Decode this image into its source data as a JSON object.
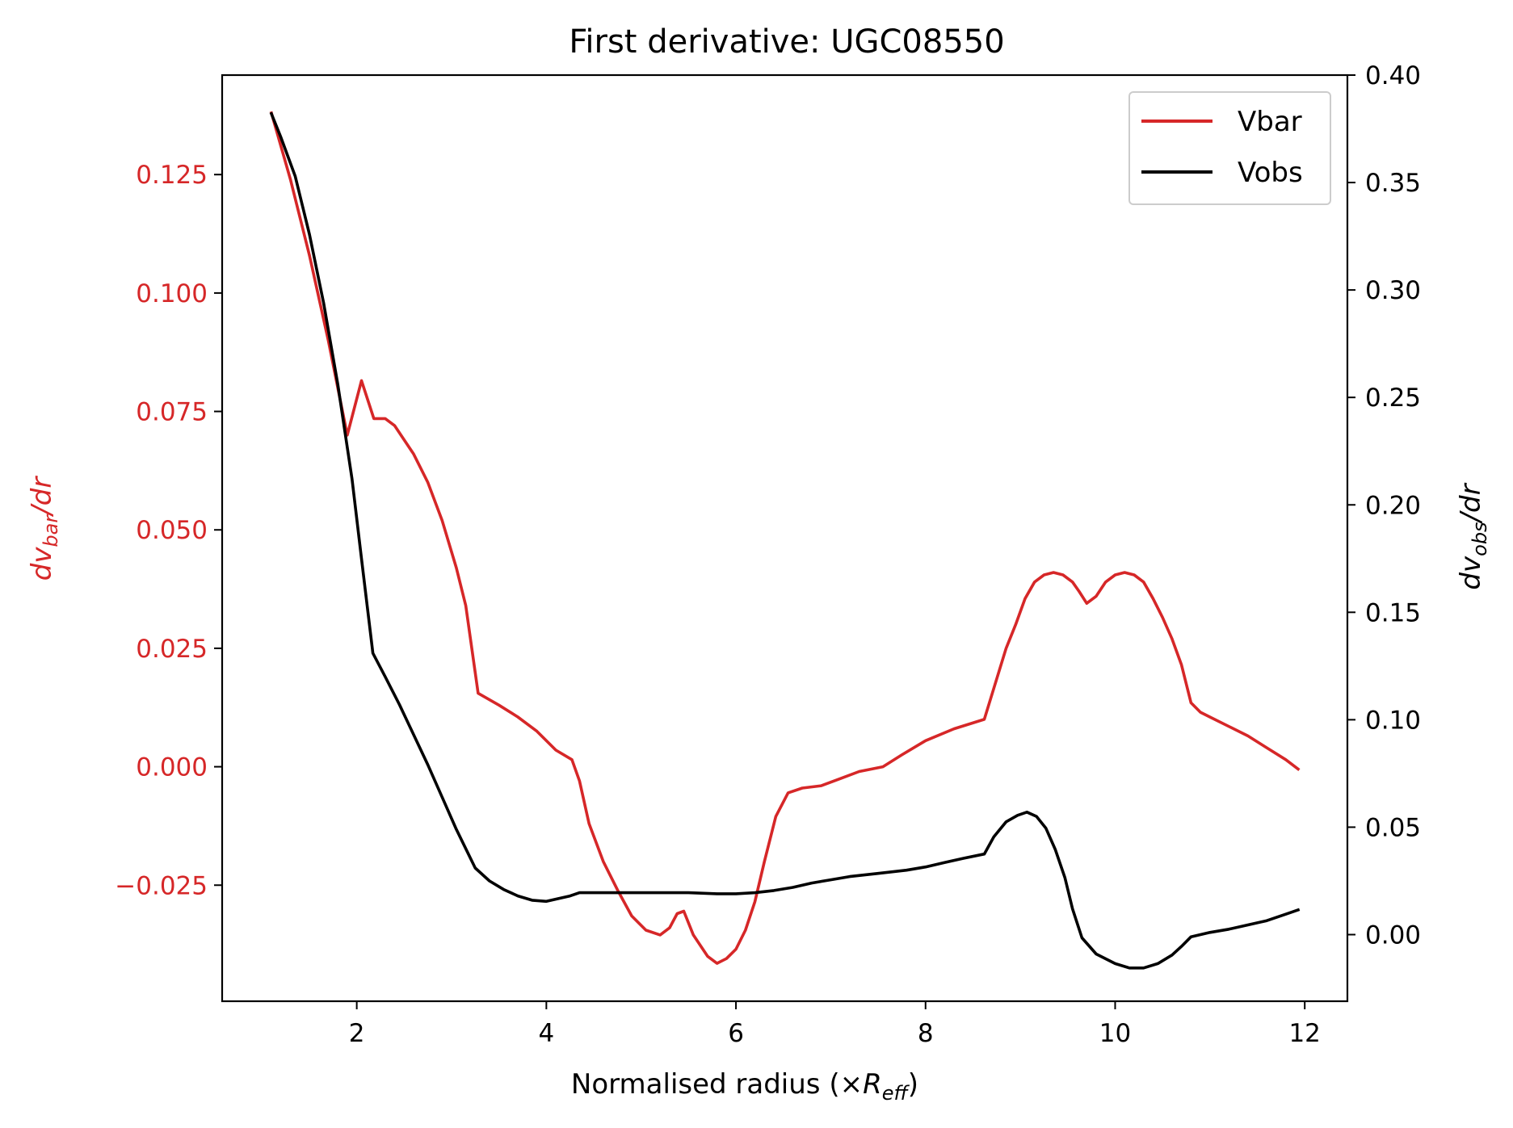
{
  "chart_data": {
    "type": "line",
    "title": "First derivative: UGC08550",
    "xlabel": {
      "main": "Normalised radius (×",
      "var": "R",
      "sub": "eff",
      "tail": ")"
    },
    "ylabel_left": {
      "var": "dv",
      "sub": "bar",
      "tail": "/dr"
    },
    "ylabel_right": {
      "var": "dv",
      "sub": "obs",
      "tail": "/dr"
    },
    "xlim": [
      0.58,
      12.45
    ],
    "ylim_left": [
      -0.0495,
      0.146
    ],
    "ylim_right": [
      -0.031,
      0.4
    ],
    "x_ticks": [
      2,
      4,
      6,
      8,
      10,
      12
    ],
    "x_tick_labels": [
      "2",
      "4",
      "6",
      "8",
      "10",
      "12"
    ],
    "left_ticks": [
      0.125,
      0.1,
      0.075,
      0.05,
      0.025,
      0.0,
      -0.025
    ],
    "left_tick_labels": [
      "0.125",
      "0.100",
      "0.075",
      "0.050",
      "0.025",
      "0.000",
      "−0.025"
    ],
    "right_ticks": [
      0.4,
      0.35,
      0.3,
      0.25,
      0.2,
      0.15,
      0.1,
      0.05,
      0.0
    ],
    "right_tick_labels": [
      "0.40",
      "0.35",
      "0.30",
      "0.25",
      "0.20",
      "0.15",
      "0.10",
      "0.05",
      "0.00"
    ],
    "grid": false,
    "legend_position": "top-right",
    "colors": {
      "vbar": "#d62728",
      "vobs": "#000000",
      "left_axis": "#d62728",
      "right_axis": "#000000"
    },
    "series": [
      {
        "name": "Vbar",
        "axis": "left",
        "x": [
          1.1,
          1.3,
          1.5,
          1.7,
          1.9,
          2.05,
          2.18,
          2.3,
          2.4,
          2.5,
          2.6,
          2.75,
          2.9,
          3.05,
          3.15,
          3.28,
          3.5,
          3.7,
          3.9,
          4.1,
          4.27,
          4.35,
          4.45,
          4.6,
          4.75,
          4.9,
          5.05,
          5.2,
          5.3,
          5.38,
          5.45,
          5.55,
          5.7,
          5.8,
          5.9,
          6.0,
          6.1,
          6.2,
          6.3,
          6.42,
          6.55,
          6.7,
          6.9,
          7.1,
          7.3,
          7.55,
          7.75,
          8.0,
          8.3,
          8.62,
          8.75,
          8.85,
          8.95,
          9.05,
          9.15,
          9.25,
          9.35,
          9.45,
          9.55,
          9.62,
          9.7,
          9.8,
          9.9,
          10.0,
          10.1,
          10.2,
          10.3,
          10.4,
          10.5,
          10.6,
          10.7,
          10.8,
          10.9,
          11.0,
          11.2,
          11.4,
          11.6,
          11.8,
          11.93
        ],
        "y": [
          0.138,
          0.124,
          0.108,
          0.09,
          0.07,
          0.0815,
          0.0735,
          0.0735,
          0.072,
          0.069,
          0.066,
          0.06,
          0.052,
          0.042,
          0.034,
          0.0155,
          0.013,
          0.0105,
          0.0075,
          0.0035,
          0.0015,
          -0.003,
          -0.012,
          -0.02,
          -0.026,
          -0.0315,
          -0.0345,
          -0.0355,
          -0.034,
          -0.031,
          -0.0305,
          -0.0355,
          -0.04,
          -0.0415,
          -0.0405,
          -0.0385,
          -0.0345,
          -0.0285,
          -0.02,
          -0.0105,
          -0.0055,
          -0.0045,
          -0.004,
          -0.0025,
          -0.001,
          0.0,
          0.0025,
          0.0055,
          0.008,
          0.01,
          0.0185,
          0.025,
          0.03,
          0.0355,
          0.039,
          0.0405,
          0.041,
          0.0405,
          0.039,
          0.037,
          0.0345,
          0.036,
          0.039,
          0.0405,
          0.041,
          0.0405,
          0.039,
          0.0355,
          0.0315,
          0.027,
          0.0215,
          0.0135,
          0.0115,
          0.0105,
          0.0085,
          0.0065,
          0.004,
          0.0015,
          -0.0005
        ]
      },
      {
        "name": "Vobs",
        "axis": "right",
        "x": [
          1.1,
          1.2,
          1.35,
          1.5,
          1.65,
          1.8,
          1.95,
          2.05,
          2.17,
          2.3,
          2.45,
          2.6,
          2.75,
          2.9,
          3.05,
          3.15,
          3.25,
          3.4,
          3.55,
          3.7,
          3.85,
          4.0,
          4.15,
          4.25,
          4.35,
          4.6,
          4.9,
          5.2,
          5.5,
          5.8,
          6.0,
          6.2,
          6.4,
          6.6,
          6.8,
          7.0,
          7.2,
          7.5,
          7.8,
          8.0,
          8.2,
          8.4,
          8.62,
          8.72,
          8.85,
          8.97,
          9.07,
          9.17,
          9.27,
          9.37,
          9.47,
          9.55,
          9.65,
          9.8,
          10.0,
          10.15,
          10.3,
          10.45,
          10.6,
          10.7,
          10.8,
          10.9,
          11.0,
          11.2,
          11.4,
          11.6,
          11.8,
          11.93
        ],
        "y": [
          0.382,
          0.371,
          0.353,
          0.326,
          0.294,
          0.256,
          0.212,
          0.175,
          0.131,
          0.12,
          0.107,
          0.093,
          0.079,
          0.064,
          0.049,
          0.04,
          0.031,
          0.025,
          0.021,
          0.018,
          0.016,
          0.0155,
          0.017,
          0.018,
          0.0195,
          0.0195,
          0.0195,
          0.0195,
          0.0195,
          0.019,
          0.019,
          0.0195,
          0.0205,
          0.022,
          0.024,
          0.0255,
          0.027,
          0.0285,
          0.03,
          0.0315,
          0.0335,
          0.0355,
          0.0375,
          0.0455,
          0.0525,
          0.0555,
          0.057,
          0.055,
          0.0495,
          0.0395,
          0.0265,
          0.012,
          -0.0015,
          -0.009,
          -0.0135,
          -0.0155,
          -0.0155,
          -0.0135,
          -0.0095,
          -0.0055,
          -0.001,
          0.0,
          0.001,
          0.0025,
          0.0045,
          0.0065,
          0.0095,
          0.0115
        ]
      }
    ]
  }
}
